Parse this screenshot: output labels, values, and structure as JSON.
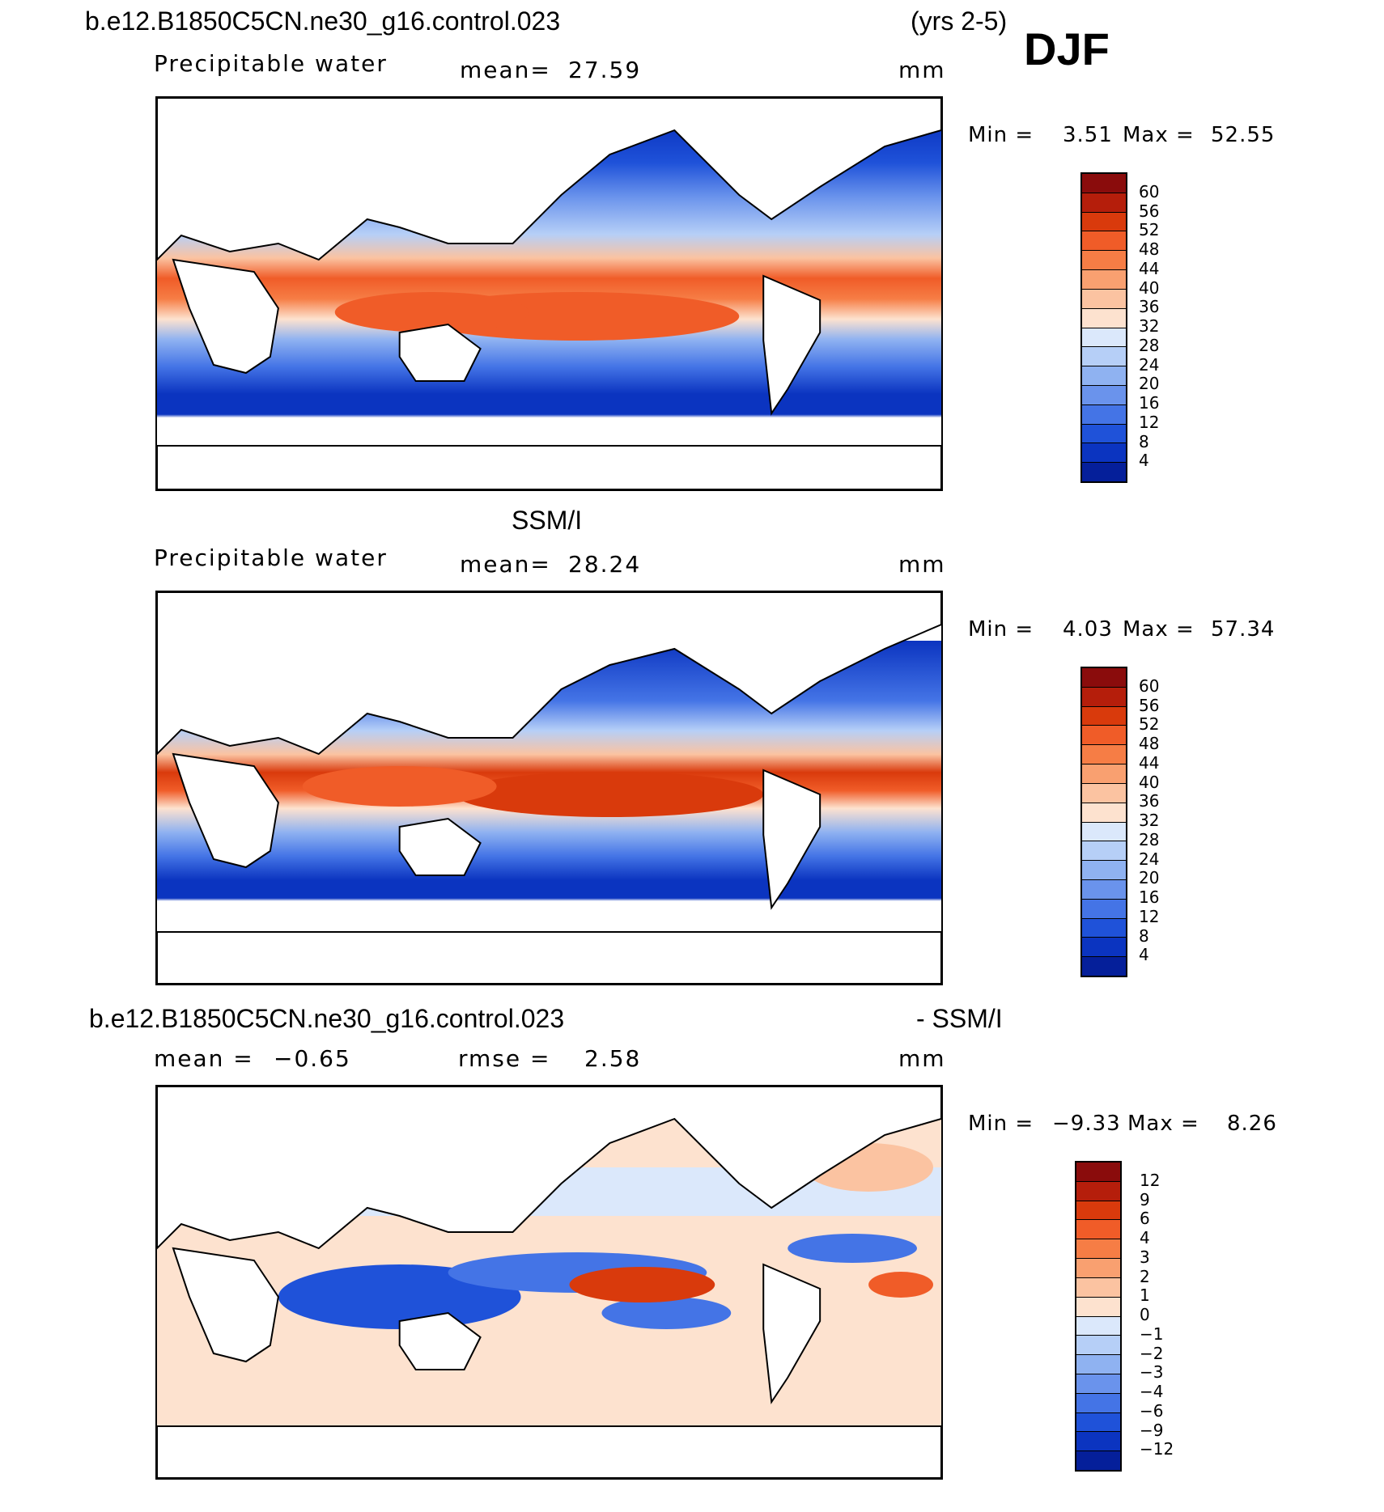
{
  "header": {
    "case_title": "b.e12.B1850C5CN.ne30_g16.control.023",
    "years": "(yrs 2-5)",
    "season": "DJF"
  },
  "panels": [
    {
      "id": "model",
      "section_title": "",
      "variable": "Precipitable water",
      "stat_label": "mean=",
      "stat_value": "27.59",
      "units": "mm",
      "min_label": "Min =",
      "min_value": "3.51",
      "max_label": "Max =",
      "max_value": "52.55",
      "colorbar_labels": [
        "60",
        "56",
        "52",
        "48",
        "44",
        "40",
        "36",
        "32",
        "28",
        "24",
        "20",
        "16",
        "12",
        "8",
        "4"
      ]
    },
    {
      "id": "obs",
      "section_title": "SSM/I",
      "variable": "Precipitable water",
      "stat_label": "mean=",
      "stat_value": "28.24",
      "units": "mm",
      "min_label": "Min =",
      "min_value": "4.03",
      "max_label": "Max =",
      "max_value": "57.34",
      "colorbar_labels": [
        "60",
        "56",
        "52",
        "48",
        "44",
        "40",
        "36",
        "32",
        "28",
        "24",
        "20",
        "16",
        "12",
        "8",
        "4"
      ]
    },
    {
      "id": "diff",
      "section_title": "b.e12.B1850C5CN.ne30_g16.control.023",
      "section_title_right": "- SSM/I",
      "stat_label": "mean =",
      "stat_value": "−0.65",
      "rmse_label": "rmse =",
      "rmse_value": "2.58",
      "units": "mm",
      "min_label": "Min =",
      "min_value": "−9.33",
      "max_label": "Max =",
      "max_value": "8.26",
      "colorbar_labels": [
        "12",
        "9",
        "6",
        "4",
        "3",
        "2",
        "1",
        "0",
        "−1",
        "−2",
        "−3",
        "−4",
        "−6",
        "−9",
        "−12"
      ]
    }
  ],
  "colors": {
    "abs_scale": [
      "#8a0c0c",
      "#b51e0b",
      "#d93a0c",
      "#f05c28",
      "#f67d45",
      "#f9a070",
      "#fbc3a1",
      "#fde2cf",
      "#dbe8fb",
      "#b6cff7",
      "#8fb2f1",
      "#6a93ec",
      "#4474e6",
      "#1f52d9",
      "#0b34c0",
      "#051f9a"
    ],
    "diff_scale": [
      "#8a0c0c",
      "#b51e0b",
      "#d93a0c",
      "#f05c28",
      "#f67d45",
      "#f9a070",
      "#fbc3a1",
      "#fde2cf",
      "#dbe8fb",
      "#b6cff7",
      "#8fb2f1",
      "#6a93ec",
      "#4474e6",
      "#1f52d9",
      "#0b34c0",
      "#051f9a"
    ]
  }
}
